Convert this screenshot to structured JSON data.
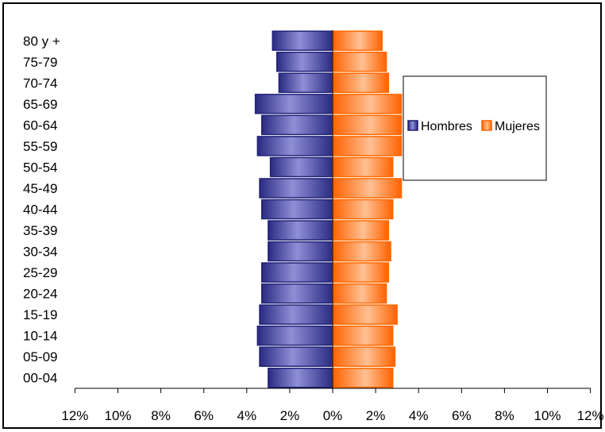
{
  "chart_data": {
    "type": "bar",
    "orientation": "horizontal",
    "style": "population-pyramid",
    "categories": [
      "00-04",
      "05-09",
      "10-14",
      "15-19",
      "20-24",
      "25-29",
      "30-34",
      "35-39",
      "40-44",
      "45-49",
      "50-54",
      "55-59",
      "60-64",
      "65-69",
      "70-74",
      "75-79",
      "80 y +"
    ],
    "series": [
      {
        "name": "Hombres",
        "side": "left",
        "color": "#22227a",
        "fill": "#7a7ac8",
        "values": [
          3.0,
          3.4,
          3.5,
          3.4,
          3.3,
          3.3,
          3.0,
          3.0,
          3.3,
          3.4,
          2.9,
          3.5,
          3.3,
          3.6,
          2.5,
          2.6,
          2.8
        ]
      },
      {
        "name": "Mujeres",
        "side": "right",
        "color": "#ff6a00",
        "fill": "#ffb27a",
        "values": [
          2.8,
          2.9,
          2.8,
          3.0,
          2.5,
          2.6,
          2.7,
          2.6,
          2.8,
          3.2,
          2.8,
          3.2,
          3.2,
          3.2,
          2.6,
          2.5,
          2.3
        ]
      }
    ],
    "x_ticks": [
      "12%",
      "10%",
      "8%",
      "6%",
      "4%",
      "2%",
      "0%",
      "2%",
      "4%",
      "6%",
      "8%",
      "10%",
      "12%"
    ],
    "xlim": [
      -12,
      12
    ],
    "unit": "%",
    "legend_position": "right",
    "grid": false
  }
}
